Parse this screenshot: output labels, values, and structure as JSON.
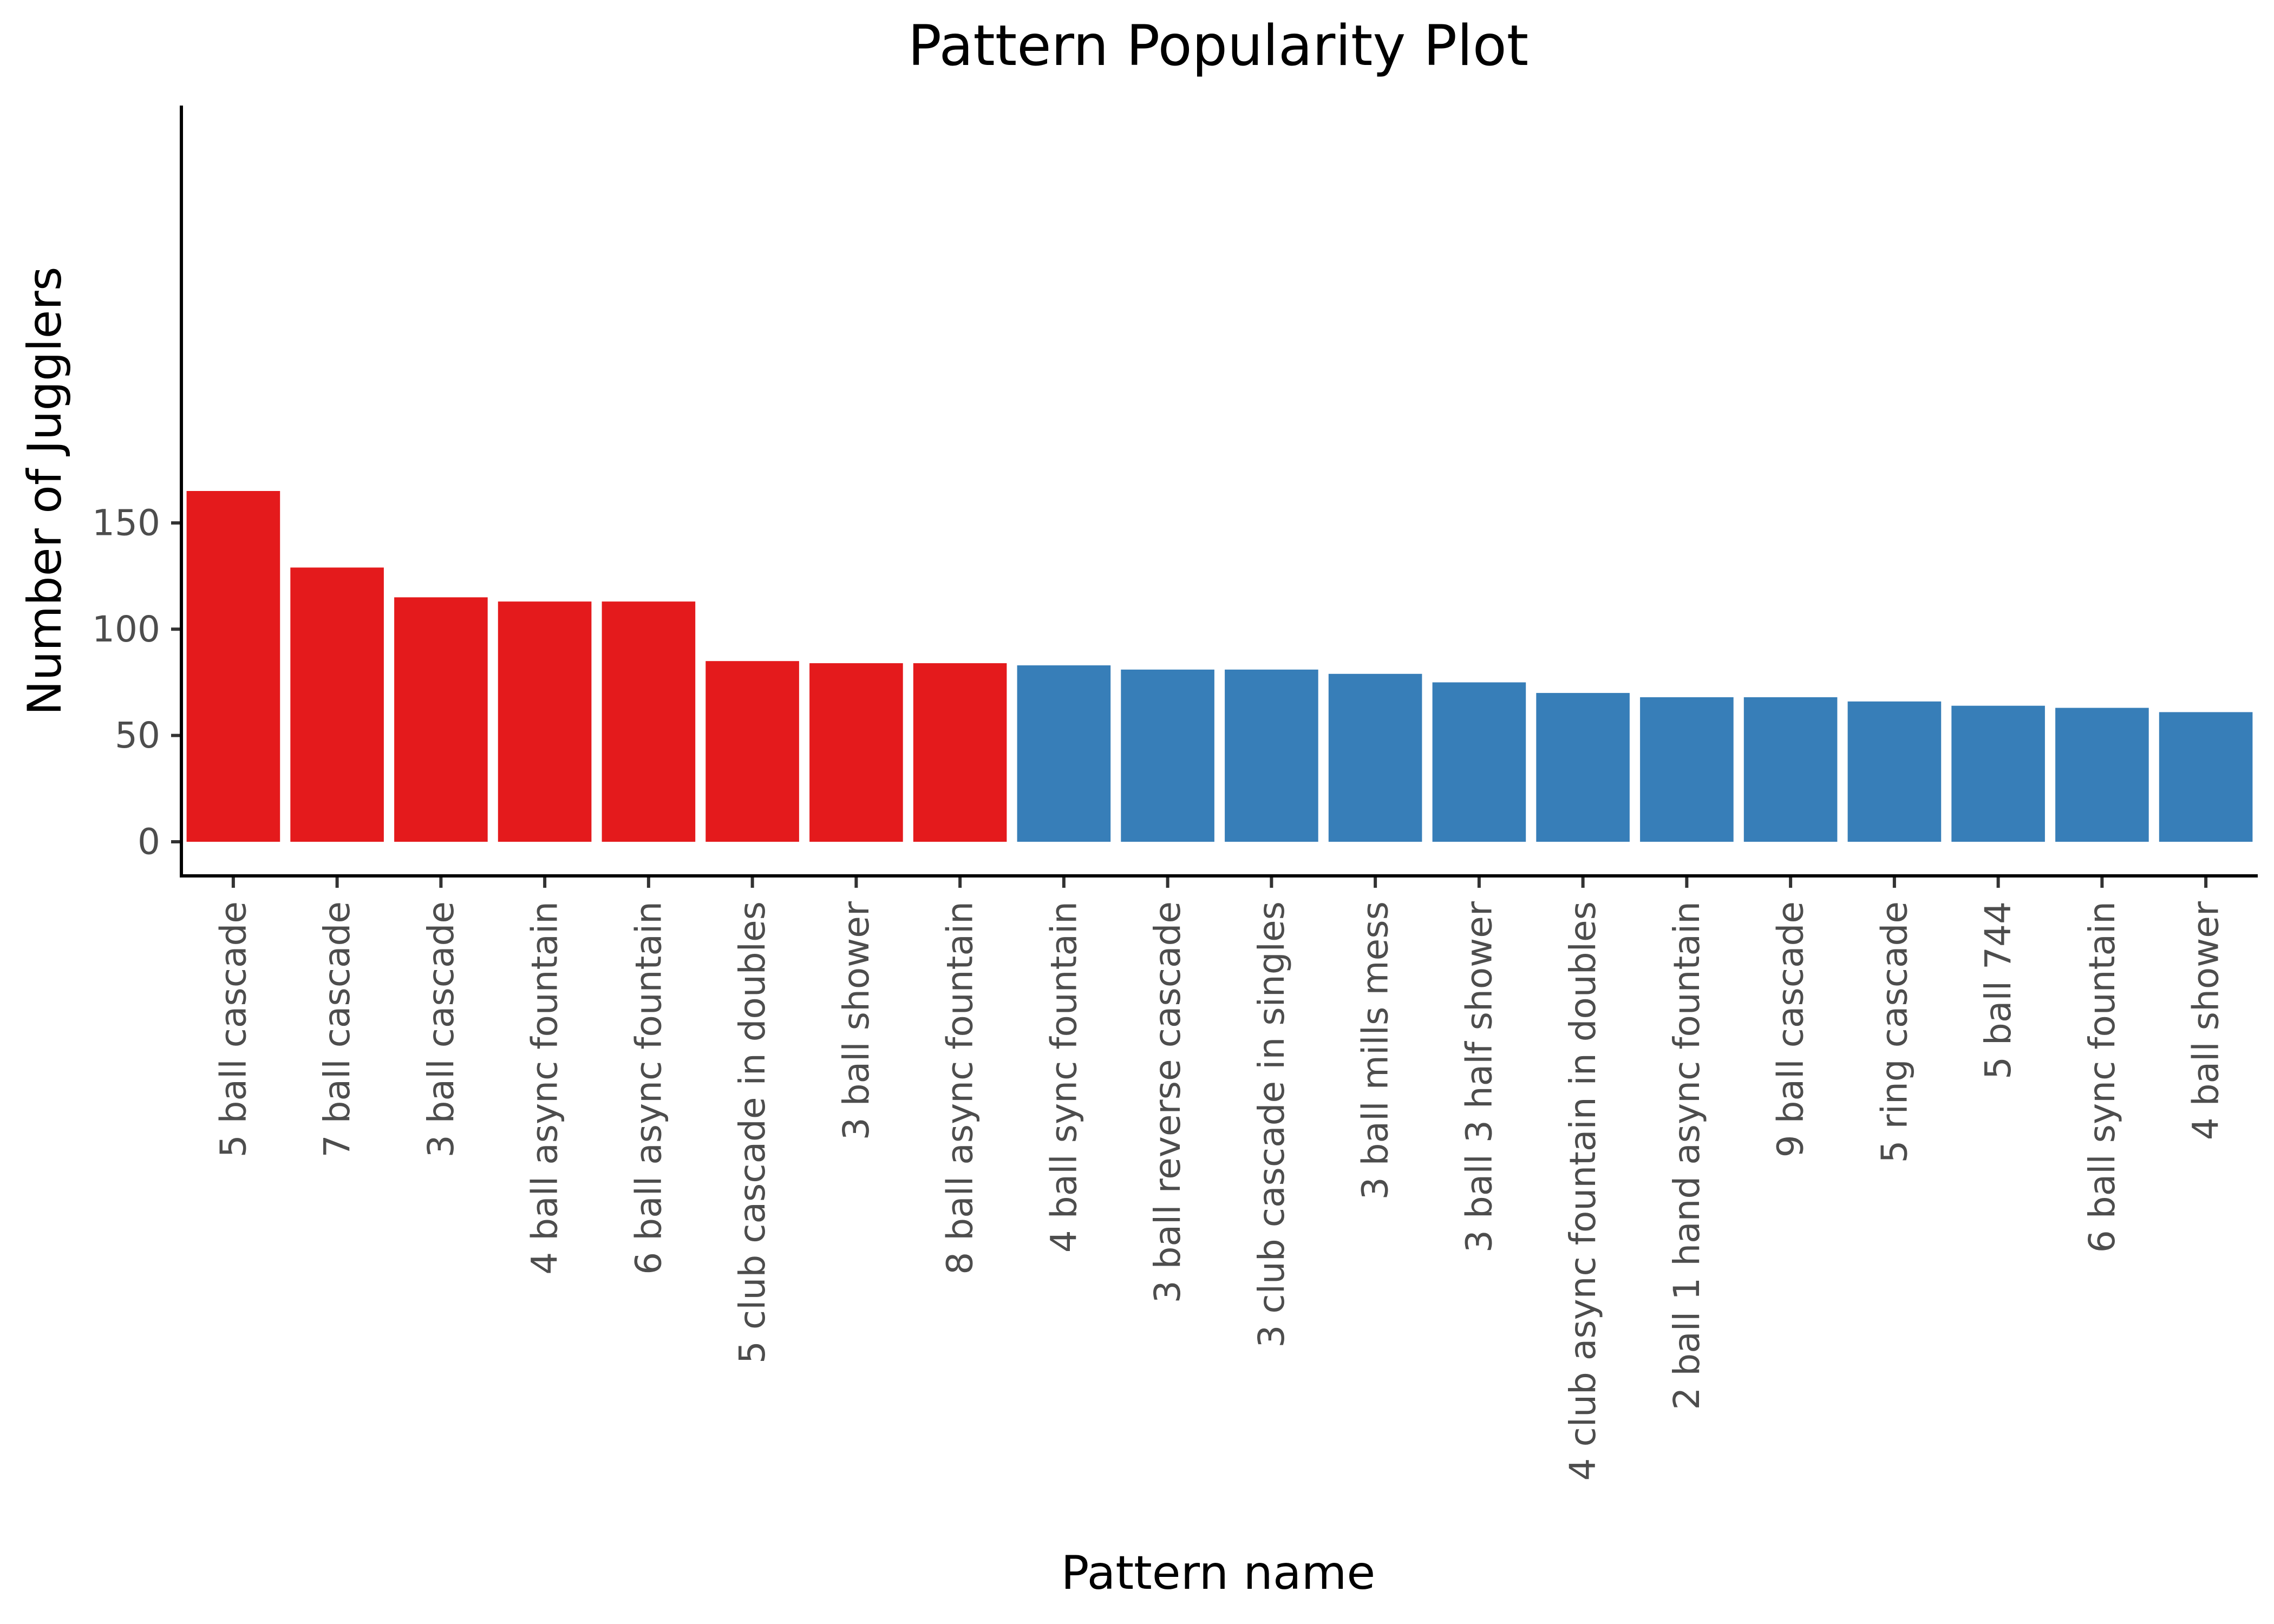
{
  "chart_data": {
    "type": "bar",
    "title": "Pattern Popularity Plot",
    "xlabel": "Pattern name",
    "ylabel": "Number of Jugglers",
    "ylim": [
      0,
      172
    ],
    "yticks": [
      0,
      50,
      100,
      150
    ],
    "grid": false,
    "legend": "none",
    "colors": {
      "highlight": "#e41a1c",
      "other": "#377eb8"
    },
    "categories": [
      "5 ball cascade",
      "7 ball cascade",
      "3 ball cascade",
      "4 ball async fountain",
      "6 ball async fountain",
      "5 club cascade in doubles",
      "3 ball shower",
      "8 ball async fountain",
      "4 ball sync fountain",
      "3 ball reverse cascade",
      "3 club cascade in singles",
      "3 ball mills mess",
      "3 ball 3 half shower",
      "4 club async fountain in doubles",
      "2 ball 1 hand async fountain",
      "9 ball cascade",
      "5 ring cascade",
      "5 ball 744",
      "6 ball sync fountain",
      "4 ball shower"
    ],
    "values": [
      165,
      129,
      115,
      113,
      113,
      85,
      84,
      84,
      83,
      81,
      81,
      79,
      75,
      70,
      68,
      68,
      66,
      64,
      63,
      61
    ],
    "bar_colors": [
      "highlight",
      "highlight",
      "highlight",
      "highlight",
      "highlight",
      "highlight",
      "highlight",
      "highlight",
      "other",
      "other",
      "other",
      "other",
      "other",
      "other",
      "other",
      "other",
      "other",
      "other",
      "other",
      "other"
    ]
  }
}
